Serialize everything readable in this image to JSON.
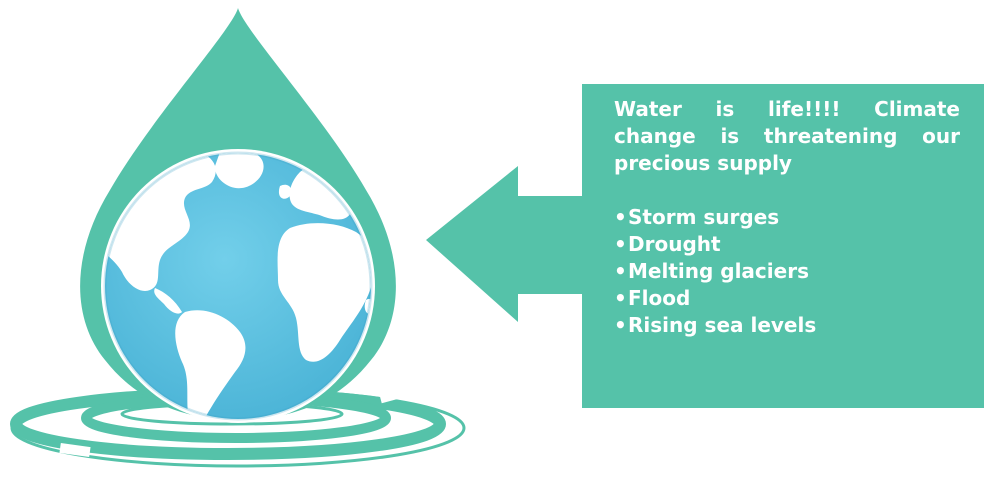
{
  "callout": {
    "heading": "Water is life!!!! Climate change is threatening our precious supply",
    "bullet_symbol": "•",
    "items": [
      "Storm surges",
      "Drought",
      "Melting glaciers",
      "Flood",
      "Rising sea levels"
    ]
  },
  "colors": {
    "teal": "#55c2a9",
    "ocean": "#5bc0de",
    "land": "#ffffff"
  },
  "icons": {
    "drop": "water-drop-icon",
    "globe": "earth-globe-icon",
    "ripple": "water-ripple-icon",
    "arrow": "arrow-left-icon"
  }
}
